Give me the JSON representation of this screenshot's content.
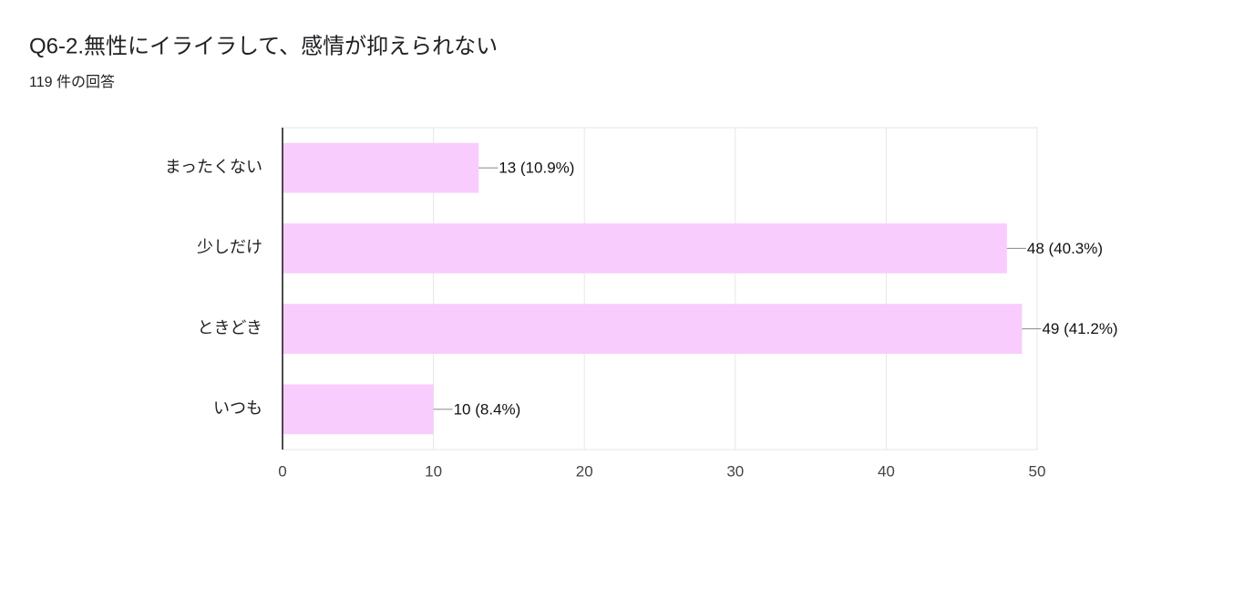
{
  "chart_data": {
    "type": "bar",
    "orientation": "horizontal",
    "title": "Q6-2.無性にイライラして、感情が抑えられない",
    "subtitle": "119 件の回答",
    "categories": [
      "まったくない",
      "少しだけ",
      "ときどき",
      "いつも"
    ],
    "values": [
      13,
      48,
      49,
      10
    ],
    "value_labels": [
      "13 (10.9%)",
      "48 (40.3%)",
      "49 (41.2%)",
      "10 (8.4%)"
    ],
    "color": "#f8ccfc",
    "xlim": [
      0,
      50
    ],
    "xticks": [
      0,
      10,
      20,
      30,
      40,
      50
    ],
    "grid": true
  }
}
